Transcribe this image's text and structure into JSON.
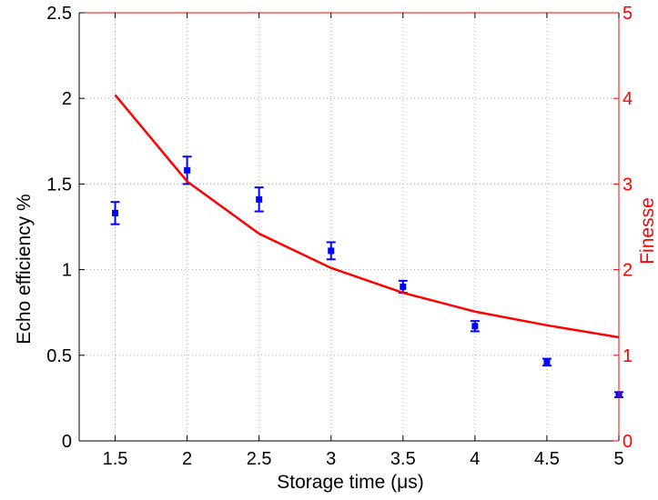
{
  "chart_data": {
    "type": "scatter",
    "xlabel": "Storage time (μs)",
    "ylabel": "Echo efficiency %",
    "y2label": "Finesse",
    "xlim": [
      1.25,
      5
    ],
    "ylim": [
      0,
      2.5
    ],
    "y2lim": [
      0,
      5
    ],
    "x_ticks": [
      "1.5",
      "2",
      "2.5",
      "3",
      "3.5",
      "4",
      "4.5",
      "5"
    ],
    "y_ticks": [
      "0",
      "0.5",
      "1",
      "1.5",
      "2",
      "2.5"
    ],
    "y2_ticks": [
      "0",
      "1",
      "2",
      "3",
      "4",
      "5"
    ],
    "grid": true,
    "series": [
      {
        "axis": "left",
        "kind": "errorbar",
        "color": "#0000ff",
        "x": [
          1.5,
          2,
          2.5,
          3,
          3.5,
          4,
          4.5,
          5
        ],
        "y": [
          1.33,
          1.58,
          1.41,
          1.11,
          0.9,
          0.67,
          0.46,
          0.27
        ],
        "err": [
          0.065,
          0.08,
          0.07,
          0.05,
          0.035,
          0.03,
          0.02,
          0.015
        ]
      },
      {
        "axis": "right",
        "kind": "line",
        "color": "#ff0000",
        "x": [
          1.5,
          2,
          2.5,
          3,
          3.5,
          4,
          4.5,
          5
        ],
        "y": [
          4.04,
          3.03,
          2.42,
          2.02,
          1.73,
          1.51,
          1.35,
          1.21
        ]
      }
    ]
  }
}
